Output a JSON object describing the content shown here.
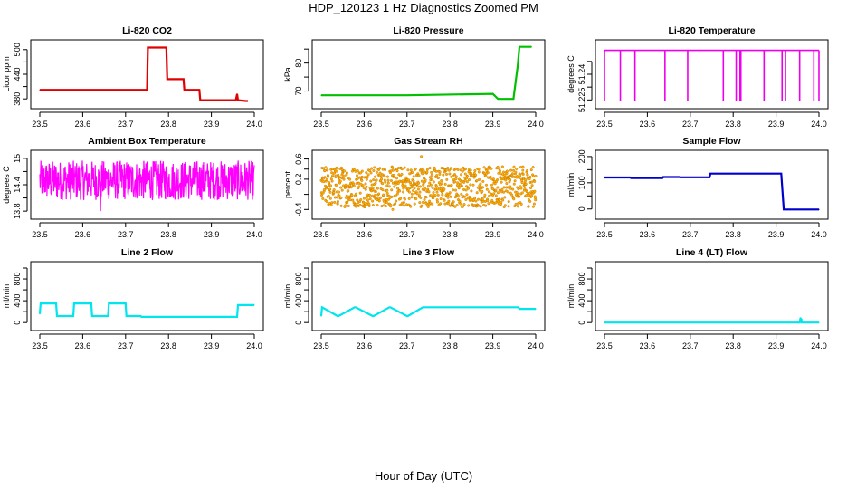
{
  "figure": {
    "title": "HDP_120123  1 Hz Diagnostics Zoomed PM",
    "xlabel": "Hour of Day (UTC)"
  },
  "chart_data": [
    {
      "id": "co2",
      "type": "line",
      "title": "Li-820 CO2",
      "ylabel": "Licor ppm",
      "color": "#e00000",
      "xlim": [
        23.5,
        24.0
      ],
      "ylim": [
        365,
        515
      ],
      "xticks": [
        "23.5",
        "23.6",
        "23.7",
        "23.8",
        "23.9",
        "24.0"
      ],
      "yticks": [
        380,
        440,
        500
      ],
      "yticks_minor": [
        410,
        470
      ],
      "series": [
        {
          "name": "CO2",
          "x": [
            23.5,
            23.75,
            23.752,
            23.795,
            23.797,
            23.835,
            23.837,
            23.872,
            23.874,
            23.957,
            23.96,
            23.962,
            23.98,
            23.985
          ],
          "y": [
            402,
            402,
            505,
            505,
            428,
            428,
            402,
            402,
            377,
            377,
            392,
            377,
            375,
            375
          ]
        }
      ]
    },
    {
      "id": "pressure",
      "type": "line",
      "title": "Li-820 Pressure",
      "ylabel": "kPa",
      "color": "#00c000",
      "xlim": [
        23.5,
        24.0
      ],
      "ylim": [
        65,
        87
      ],
      "xticks": [
        "23.5",
        "23.6",
        "23.7",
        "23.8",
        "23.9",
        "24.0"
      ],
      "yticks": [
        70,
        80
      ],
      "yticks_minor": [
        75,
        85
      ],
      "series": [
        {
          "name": "Pressure",
          "x": [
            23.5,
            23.7,
            23.9,
            23.912,
            23.948,
            23.958,
            23.962,
            23.99
          ],
          "y": [
            68.5,
            68.5,
            69.0,
            67.2,
            67.2,
            79.0,
            85.8,
            85.8
          ]
        }
      ]
    },
    {
      "id": "temp",
      "type": "line",
      "title": "Li-820 Temperature",
      "ylabel": "degrees C",
      "color": "#ee00ee",
      "xlim": [
        23.5,
        24.0
      ],
      "ylim": [
        51.222,
        51.258
      ],
      "xticks": [
        "23.5",
        "23.6",
        "23.7",
        "23.8",
        "23.9",
        "24.0"
      ],
      "yticks": [
        51.225,
        51.24
      ],
      "yticks_minor": [
        51.2325,
        51.2475
      ],
      "series": [
        {
          "name": "Temperature",
          "baseline": 51.254,
          "dip_to": 51.2245,
          "dips": [
            23.5,
            23.537,
            23.571,
            23.641,
            23.694,
            23.777,
            23.807,
            23.816,
            23.818,
            23.872,
            23.914,
            23.922,
            23.955,
            23.988,
            24.0
          ]
        }
      ]
    },
    {
      "id": "ambient",
      "type": "line",
      "title": "Ambient Box Temperature",
      "ylabel": "degrees C",
      "color": "#ff00ff",
      "xlim": [
        23.5,
        24.0
      ],
      "ylim": [
        13.7,
        15.1
      ],
      "xticks": [
        "23.5",
        "23.6",
        "23.7",
        "23.8",
        "23.9",
        "24.0"
      ],
      "yticks": [
        13.8,
        14.4,
        15.0
      ],
      "yticks_minor": [
        14.1,
        14.7
      ],
      "series": [
        {
          "name": "Ambient",
          "noise_mean": 14.5,
          "noise_low": 14.05,
          "noise_high": 14.95,
          "min_value": 13.8
        }
      ]
    },
    {
      "id": "rh",
      "type": "scatter",
      "title": "Gas Stream RH",
      "ylabel": "percent",
      "color": "#ffb000",
      "edge_color": "#c07000",
      "xlim": [
        23.5,
        24.0
      ],
      "ylim": [
        -0.52,
        0.7
      ],
      "xticks": [
        "23.5",
        "23.6",
        "23.7",
        "23.8",
        "23.9",
        "24.0"
      ],
      "yticks": [
        -0.4,
        0.2,
        0.6
      ],
      "yticks_minor": [
        -0.1,
        0.4
      ],
      "series": [
        {
          "name": "RH",
          "noise_low": -0.35,
          "noise_high": 0.45,
          "max_value": 0.65,
          "min_value": -0.4
        }
      ]
    },
    {
      "id": "sample",
      "type": "line",
      "title": "Sample Flow",
      "ylabel": "ml/min",
      "color": "#0000cc",
      "xlim": [
        23.5,
        24.0
      ],
      "ylim": [
        -25,
        210
      ],
      "xticks": [
        "23.5",
        "23.6",
        "23.7",
        "23.8",
        "23.9",
        "24.0"
      ],
      "yticks": [
        0,
        100,
        200
      ],
      "yticks_minor": [
        50,
        150
      ],
      "series": [
        {
          "name": "Sample",
          "x": [
            23.5,
            23.56,
            23.562,
            23.635,
            23.637,
            23.675,
            23.677,
            23.745,
            23.747,
            23.912,
            23.918,
            24.0
          ],
          "y": [
            120,
            120,
            118,
            118,
            122,
            122,
            121,
            121,
            135,
            135,
            -2,
            -2
          ]
        }
      ]
    },
    {
      "id": "line2",
      "type": "line",
      "title": "Line 2 Flow",
      "ylabel": "ml/min",
      "color": "#00e5ee",
      "xlim": [
        23.5,
        24.0
      ],
      "ylim": [
        -80,
        1050
      ],
      "xticks": [
        "23.5",
        "23.6",
        "23.7",
        "23.8",
        "23.9",
        "24.0"
      ],
      "yticks": [
        0,
        400,
        800
      ],
      "yticks_minor": [
        200,
        600,
        1000
      ],
      "series": [
        {
          "name": "Line 2",
          "x": [
            23.5,
            23.502,
            23.538,
            23.54,
            23.578,
            23.58,
            23.62,
            23.622,
            23.659,
            23.661,
            23.7,
            23.702,
            23.735,
            23.737,
            23.96,
            23.962,
            24.0
          ],
          "y": [
            160,
            350,
            350,
            120,
            120,
            350,
            350,
            120,
            120,
            350,
            350,
            120,
            120,
            105,
            105,
            320,
            320
          ]
        }
      ]
    },
    {
      "id": "line3",
      "type": "line",
      "title": "Line 3 Flow",
      "ylabel": "ml/min",
      "color": "#00e5ee",
      "xlim": [
        23.5,
        24.0
      ],
      "ylim": [
        -80,
        1050
      ],
      "xticks": [
        "23.5",
        "23.6",
        "23.7",
        "23.8",
        "23.9",
        "24.0"
      ],
      "yticks": [
        0,
        400,
        800
      ],
      "yticks_minor": [
        200,
        600,
        1000
      ],
      "series": [
        {
          "name": "Line 3",
          "x": [
            23.5,
            23.502,
            23.538,
            23.54,
            23.578,
            23.58,
            23.62,
            23.622,
            23.659,
            23.661,
            23.7,
            23.702,
            23.737,
            23.96,
            23.962,
            24.0
          ],
          "y": [
            120,
            280,
            120,
            120,
            280,
            280,
            120,
            120,
            280,
            280,
            120,
            120,
            280,
            280,
            250,
            250
          ]
        }
      ]
    },
    {
      "id": "line4",
      "type": "line",
      "title": "Line 4 (LT) Flow",
      "ylabel": "ml/min",
      "color": "#00e5ee",
      "xlim": [
        23.5,
        24.0
      ],
      "ylim": [
        -80,
        1050
      ],
      "xticks": [
        "23.5",
        "23.6",
        "23.7",
        "23.8",
        "23.9",
        "24.0"
      ],
      "yticks": [
        0,
        400,
        800
      ],
      "yticks_minor": [
        200,
        600,
        1000
      ],
      "series": [
        {
          "name": "Line 4",
          "x": [
            23.5,
            23.955,
            23.957,
            23.958,
            23.959,
            23.96,
            23.962,
            24.0
          ],
          "y": [
            0,
            0,
            90,
            5,
            70,
            0,
            0,
            0
          ]
        }
      ]
    }
  ]
}
